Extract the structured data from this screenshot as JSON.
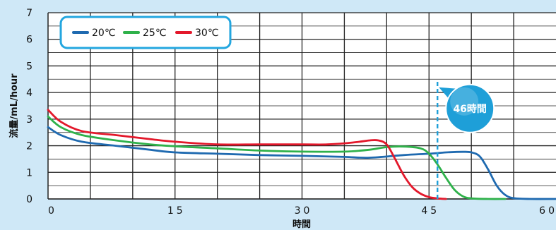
{
  "chart_data": {
    "type": "line",
    "xlabel": "時間",
    "ylabel": "流量/mL/hour",
    "xlim": [
      0,
      60
    ],
    "ylim": [
      0,
      7
    ],
    "xticks": [
      0,
      15,
      30,
      45,
      60
    ],
    "yticks": [
      0,
      1,
      2,
      3,
      4,
      5,
      6,
      7
    ],
    "grid": true,
    "legend_position": "top-left",
    "series": [
      {
        "name": "20℃",
        "color": "#1f6ab0",
        "x": [
          0,
          1.5,
          4,
          8,
          12,
          15,
          20,
          25,
          30,
          35,
          38,
          42,
          45,
          47,
          49,
          50,
          51,
          52,
          53,
          54,
          55,
          57,
          60
        ],
        "y": [
          2.7,
          2.4,
          2.15,
          2.0,
          1.85,
          1.75,
          1.7,
          1.65,
          1.62,
          1.58,
          1.55,
          1.65,
          1.7,
          1.75,
          1.77,
          1.75,
          1.6,
          1.1,
          0.5,
          0.15,
          0.03,
          0.0,
          0.0
        ]
      },
      {
        "name": "25℃",
        "color": "#2fb14a",
        "x": [
          0,
          1.5,
          4,
          8,
          12,
          15,
          20,
          25,
          30,
          35,
          38,
          40,
          42,
          44,
          45,
          46,
          47,
          48,
          49,
          50,
          52,
          54
        ],
        "y": [
          3.1,
          2.7,
          2.4,
          2.2,
          2.05,
          1.98,
          1.9,
          1.82,
          1.78,
          1.78,
          1.85,
          1.95,
          1.97,
          1.9,
          1.7,
          1.3,
          0.8,
          0.35,
          0.1,
          0.02,
          0.0,
          0.0
        ]
      },
      {
        "name": "30℃",
        "color": "#e3182b",
        "x": [
          0,
          1.5,
          4,
          8,
          12,
          15,
          20,
          25,
          30,
          33,
          36,
          38,
          39,
          40,
          41,
          42,
          43,
          44,
          45,
          46,
          47
        ],
        "y": [
          3.35,
          2.9,
          2.55,
          2.4,
          2.25,
          2.15,
          2.05,
          2.05,
          2.05,
          2.05,
          2.12,
          2.2,
          2.2,
          2.05,
          1.5,
          0.9,
          0.45,
          0.2,
          0.07,
          0.02,
          0.0
        ]
      }
    ],
    "annotations": [
      {
        "type": "vline",
        "x": 46,
        "color": "#1e9fd8",
        "style": "dashed"
      },
      {
        "type": "callout",
        "text": "46時間",
        "x": 48.5,
        "y": 3.4
      }
    ]
  }
}
